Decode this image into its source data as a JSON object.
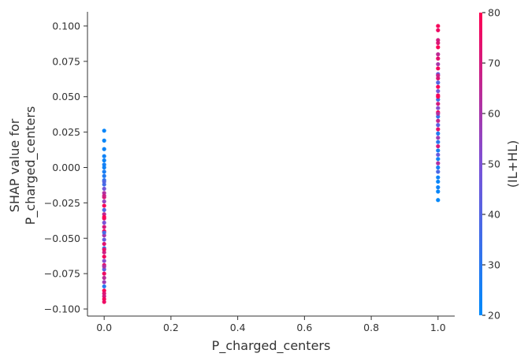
{
  "chart_data": {
    "type": "scatter",
    "title": "",
    "xlabel": "P_charged_centers",
    "ylabel": [
      "SHAP value for",
      "P_charged_centers"
    ],
    "xlim": [
      -0.05,
      1.05
    ],
    "ylim": [
      -0.105,
      0.11
    ],
    "x_ticks": [
      0.0,
      0.2,
      0.4,
      0.6,
      0.8,
      1.0
    ],
    "x_tick_labels": [
      "0.0",
      "0.2",
      "0.4",
      "0.6",
      "0.8",
      "1.0"
    ],
    "y_ticks": [
      -0.1,
      -0.075,
      -0.05,
      -0.025,
      0.0,
      0.025,
      0.05,
      0.075,
      0.1
    ],
    "y_tick_labels": [
      "−0.100",
      "−0.075",
      "−0.050",
      "−0.025",
      "0.000",
      "0.025",
      "0.050",
      "0.075",
      "0.100"
    ],
    "grid": false,
    "colorbar": {
      "label": "(IL+HL)",
      "range": [
        20,
        80
      ],
      "ticks": [
        20,
        30,
        40,
        50,
        60,
        70,
        80
      ],
      "tick_labels": [
        "20",
        "30",
        "40",
        "50",
        "60",
        "70",
        "80"
      ],
      "color_low": "#008afb",
      "color_mid": "#7c52d7",
      "color_high": "#ff0052"
    },
    "series": [
      {
        "x": 0.0,
        "points": [
          [
            0.026,
            22
          ],
          [
            0.019,
            22
          ],
          [
            0.013,
            23
          ],
          [
            0.008,
            24
          ],
          [
            0.005,
            23
          ],
          [
            0.002,
            25
          ],
          [
            0.0,
            24
          ],
          [
            -0.003,
            26
          ],
          [
            -0.006,
            28
          ],
          [
            -0.009,
            30
          ],
          [
            -0.012,
            36
          ],
          [
            -0.015,
            48
          ],
          [
            -0.018,
            62
          ],
          [
            -0.021,
            72
          ],
          [
            -0.024,
            55
          ],
          [
            -0.027,
            78
          ],
          [
            -0.03,
            40
          ],
          [
            -0.033,
            66
          ],
          [
            -0.036,
            75
          ],
          [
            -0.039,
            50
          ],
          [
            -0.042,
            70
          ],
          [
            -0.045,
            79
          ],
          [
            -0.048,
            60
          ],
          [
            -0.051,
            45
          ],
          [
            -0.054,
            73
          ],
          [
            -0.057,
            35
          ],
          [
            -0.06,
            68
          ],
          [
            -0.063,
            77
          ],
          [
            -0.066,
            52
          ],
          [
            -0.069,
            74
          ],
          [
            -0.072,
            42
          ],
          [
            -0.075,
            76
          ],
          [
            -0.078,
            64
          ],
          [
            -0.081,
            58
          ],
          [
            -0.084,
            30
          ],
          [
            -0.087,
            79
          ],
          [
            -0.089,
            72
          ],
          [
            -0.091,
            70
          ],
          [
            -0.093,
            78
          ],
          [
            -0.095,
            76
          ],
          [
            -0.01,
            40
          ],
          [
            -0.02,
            68
          ],
          [
            -0.035,
            79
          ],
          [
            -0.046,
            38
          ],
          [
            -0.058,
            74
          ],
          [
            -0.07,
            62
          ]
        ]
      },
      {
        "x": 1.0,
        "points": [
          [
            0.1,
            78
          ],
          [
            0.097,
            76
          ],
          [
            0.09,
            70
          ],
          [
            0.088,
            72
          ],
          [
            0.085,
            79
          ],
          [
            0.08,
            65
          ],
          [
            0.077,
            74
          ],
          [
            0.073,
            60
          ],
          [
            0.07,
            78
          ],
          [
            0.066,
            45
          ],
          [
            0.063,
            72
          ],
          [
            0.06,
            40
          ],
          [
            0.057,
            78
          ],
          [
            0.054,
            48
          ],
          [
            0.051,
            75
          ],
          [
            0.048,
            36
          ],
          [
            0.045,
            70
          ],
          [
            0.042,
            52
          ],
          [
            0.039,
            77
          ],
          [
            0.036,
            32
          ],
          [
            0.033,
            66
          ],
          [
            0.03,
            42
          ],
          [
            0.027,
            74
          ],
          [
            0.024,
            28
          ],
          [
            0.021,
            58
          ],
          [
            0.018,
            30
          ],
          [
            0.015,
            70
          ],
          [
            0.012,
            26
          ],
          [
            0.009,
            46
          ],
          [
            0.006,
            24
          ],
          [
            0.003,
            62
          ],
          [
            0.0,
            25
          ],
          [
            -0.003,
            38
          ],
          [
            -0.007,
            23
          ],
          [
            -0.01,
            22
          ],
          [
            -0.014,
            24
          ],
          [
            -0.017,
            22
          ],
          [
            -0.023,
            21
          ],
          [
            0.038,
            62
          ],
          [
            0.05,
            79
          ],
          [
            0.065,
            68
          ]
        ]
      }
    ]
  }
}
